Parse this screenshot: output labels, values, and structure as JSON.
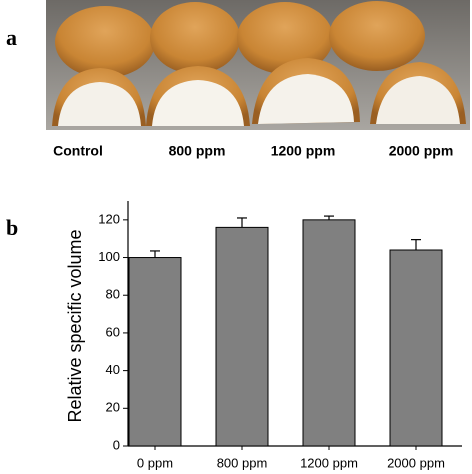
{
  "panel_labels": [
    "a",
    "b"
  ],
  "photo": {
    "labels": [
      "Control",
      "800 ppm",
      "1200 ppm",
      "2000 ppm"
    ]
  },
  "chart_data": {
    "type": "bar",
    "y_label": "Relative specific volume",
    "categories": [
      "0 ppm",
      "800 ppm",
      "1200 ppm",
      "2000 ppm"
    ],
    "values": [
      100,
      116,
      120,
      104
    ],
    "errors": [
      3.5,
      5,
      2,
      5.5
    ],
    "color": "#808080",
    "ylim": [
      0,
      130
    ],
    "yticks": [
      0,
      20,
      40,
      60,
      80,
      100,
      120
    ]
  }
}
